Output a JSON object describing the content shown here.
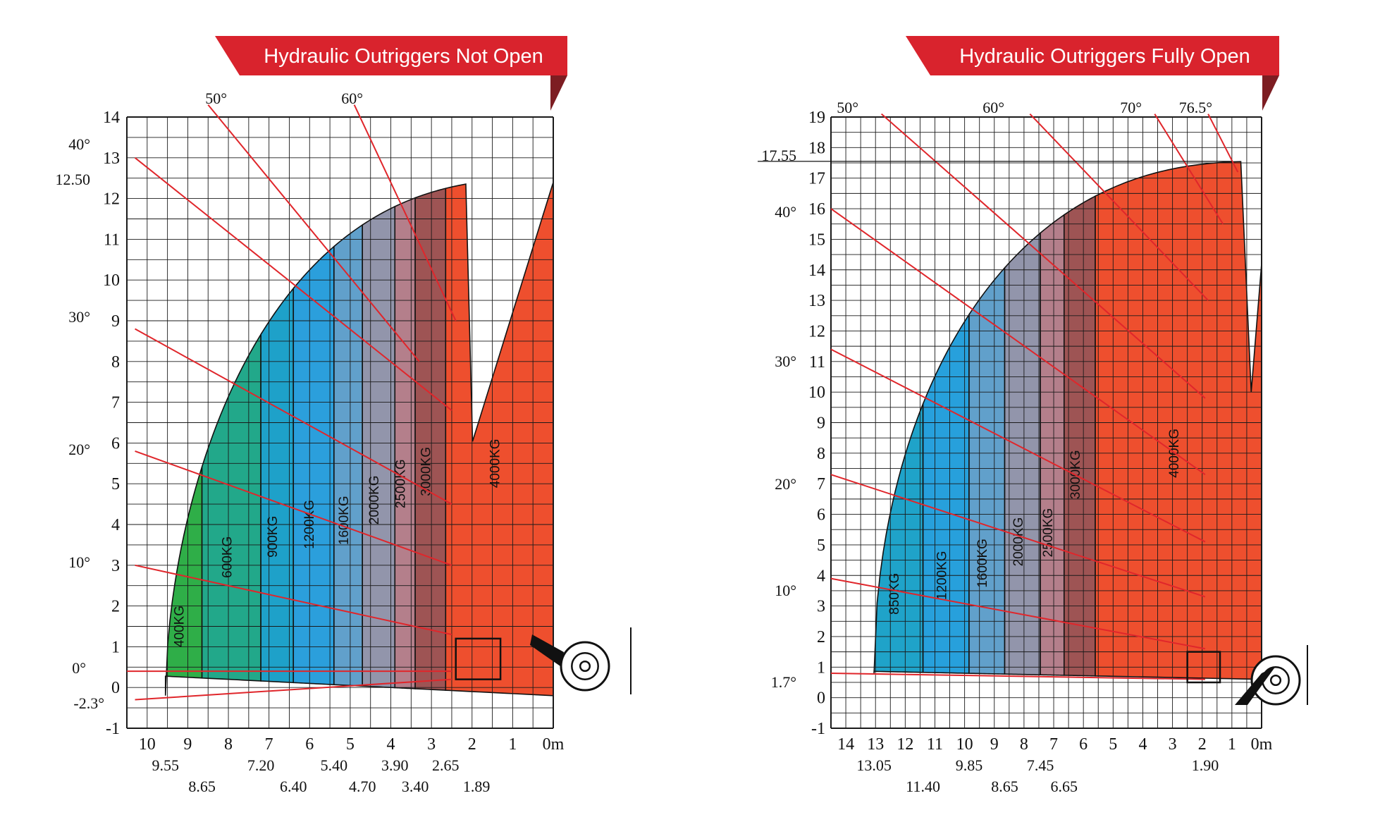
{
  "chart_data": [
    {
      "type": "area",
      "title": "Hydraulic Outriggers Not Open",
      "x_unit": "m",
      "xlim": [
        0,
        10.5
      ],
      "ylim": [
        -1,
        14
      ],
      "x_ticks": [
        "10",
        "9",
        "8",
        "7",
        "6",
        "5",
        "4",
        "3",
        "2",
        "1",
        "0"
      ],
      "y_ticks": [
        "-1",
        "0",
        "1",
        "2",
        "3",
        "4",
        "5",
        "6",
        "7",
        "8",
        "9",
        "10",
        "11",
        "12",
        "13",
        "14"
      ],
      "reach_labels": [
        "9.55",
        "8.65",
        "7.20",
        "6.40",
        "5.40",
        "4.70",
        "3.90",
        "3.40",
        "2.65",
        "1.89"
      ],
      "height_marks": [
        "12.50"
      ],
      "angle_labels": [
        "-2.3°",
        "0°",
        "10°",
        "20°",
        "30°",
        "40°",
        "50°",
        "60°"
      ],
      "zones": [
        {
          "label": "400KG",
          "color": "#2fae48"
        },
        {
          "label": "600KG",
          "color": "#22a88a"
        },
        {
          "label": "900KG",
          "color": "#1ea1c9"
        },
        {
          "label": "1200KG",
          "color": "#2b9fdc"
        },
        {
          "label": "1600KG",
          "color": "#61a0cb"
        },
        {
          "label": "2000KG",
          "color": "#9295ab"
        },
        {
          "label": "2500KG",
          "color": "#b47f8b"
        },
        {
          "label": "3000KG",
          "color": "#9e5454"
        },
        {
          "label": "4000KG",
          "color": "#ee4f2e"
        }
      ]
    },
    {
      "type": "area",
      "title": "Hydraulic Outriggers Fully Open",
      "x_unit": "m",
      "xlim": [
        0,
        14.5
      ],
      "ylim": [
        -1,
        19
      ],
      "x_ticks": [
        "14",
        "13",
        "12",
        "11",
        "10",
        "9",
        "8",
        "7",
        "6",
        "5",
        "4",
        "3",
        "2",
        "1",
        "0"
      ],
      "y_ticks": [
        "-1",
        "0",
        "1",
        "2",
        "3",
        "4",
        "5",
        "6",
        "7",
        "8",
        "9",
        "10",
        "11",
        "12",
        "13",
        "14",
        "15",
        "16",
        "17",
        "18",
        "19"
      ],
      "reach_labels": [
        "13.05",
        "11.40",
        "9.85",
        "8.65",
        "7.45",
        "6.65",
        "1.90"
      ],
      "height_marks": [
        "17.55"
      ],
      "angle_labels": [
        "1.7°",
        "10°",
        "20°",
        "30°",
        "40°",
        "50°",
        "60°",
        "70°",
        "76.5°"
      ],
      "zones": [
        {
          "label": "850KG",
          "color": "#1fa3c9"
        },
        {
          "label": "1200KG",
          "color": "#27a0dc"
        },
        {
          "label": "1600KG",
          "color": "#61a0cb"
        },
        {
          "label": "2000KG",
          "color": "#9295ab"
        },
        {
          "label": "2500KG",
          "color": "#b47f8b"
        },
        {
          "label": "3000KG",
          "color": "#9e5454"
        },
        {
          "label": "4000KG",
          "color": "#ee4f2e"
        }
      ]
    }
  ],
  "colors": {
    "banner": "#d9232d",
    "banner_shadow": "#7d1d22",
    "angle_line": "#e0262b",
    "grid": "#1a1a1a"
  },
  "icons": [
    "telehandler-wheel-icon",
    "telehandler-wheel-icon"
  ]
}
